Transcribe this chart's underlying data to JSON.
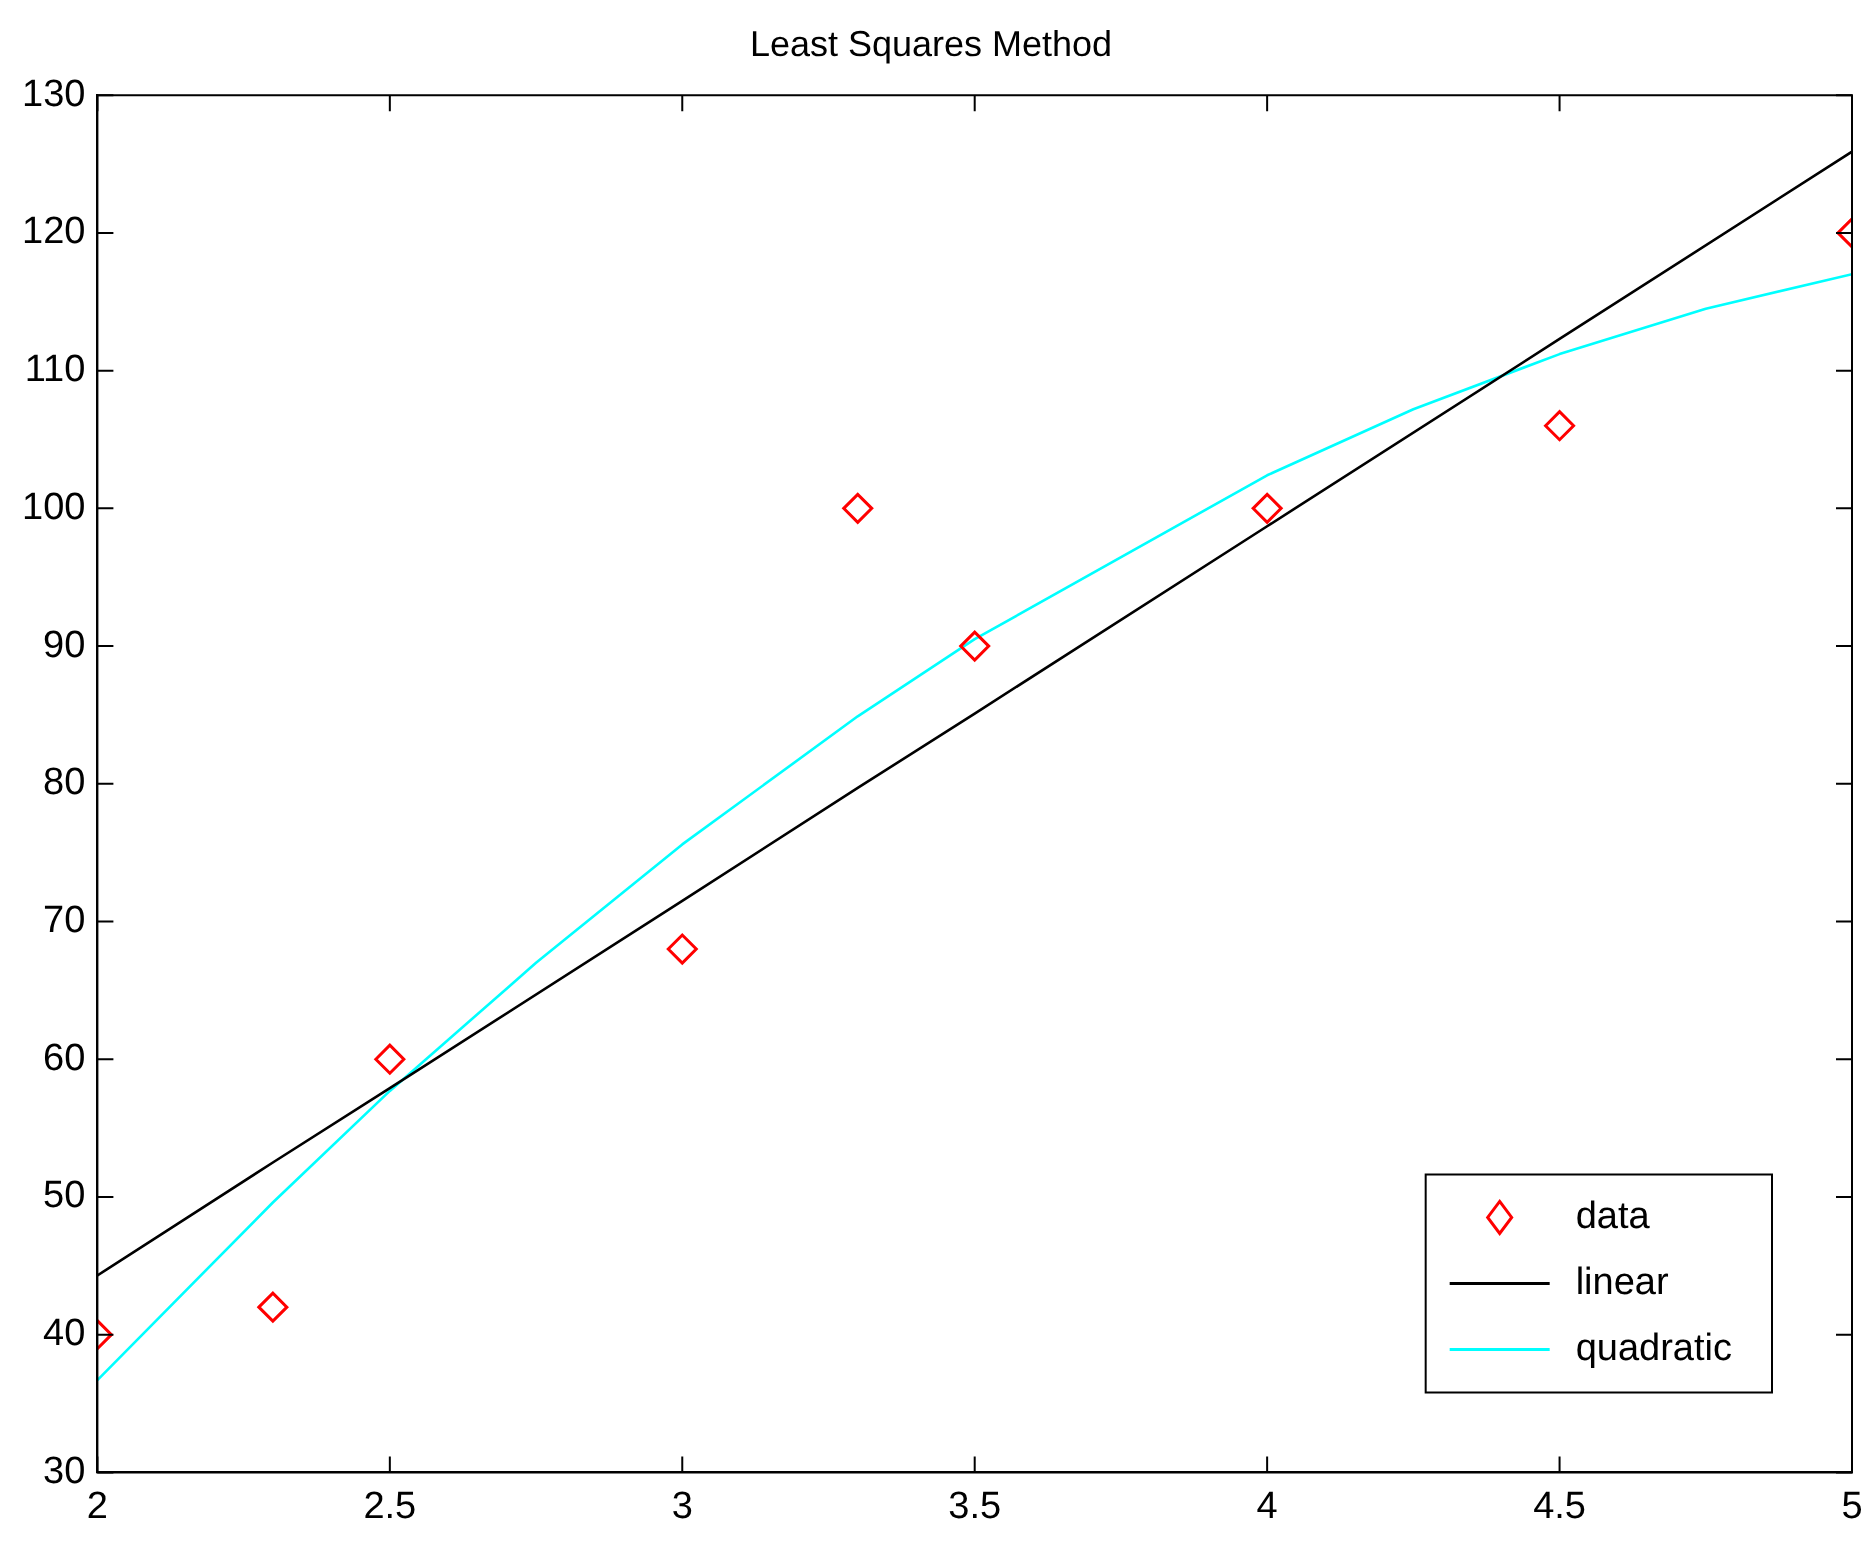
{
  "chart_data": {
    "type": "line",
    "title": "Least Squares Method",
    "xlim": [
      2,
      5
    ],
    "xticks": [
      2,
      2.5,
      3,
      3.5,
      4,
      4.5,
      5
    ],
    "ylim": [
      30,
      130
    ],
    "yticks": [
      30,
      40,
      50,
      60,
      70,
      80,
      90,
      100,
      110,
      120,
      130
    ],
    "grid": false,
    "legend": "bottom right",
    "series": [
      {
        "name": "data",
        "type": "scatter",
        "marker": "diamond",
        "color": "#ff0000",
        "x": [
          2,
          2.3,
          2.5,
          3,
          3.3,
          3.5,
          4,
          4.5,
          5
        ],
        "values": [
          40,
          42,
          60,
          68,
          100,
          90,
          100,
          106,
          120
        ]
      },
      {
        "name": "linear",
        "color": "#000000",
        "x": [
          2,
          2.3,
          2.5,
          3,
          3.3,
          3.5,
          4,
          4.5,
          5
        ],
        "values": [
          44.3,
          52.5,
          57.9,
          71.5,
          79.7,
          85.1,
          98.7,
          112.3,
          125.9
        ]
      },
      {
        "name": "quadratic",
        "color": "#00ffff",
        "x": [
          2,
          2.3,
          2.5,
          2.75,
          3,
          3.3,
          3.5,
          4,
          4.25,
          4.5,
          4.75,
          5
        ],
        "values": [
          36.7,
          49.6,
          57.7,
          67.0,
          75.6,
          84.9,
          90.5,
          102.4,
          107.2,
          111.2,
          114.5,
          117
        ]
      }
    ]
  }
}
